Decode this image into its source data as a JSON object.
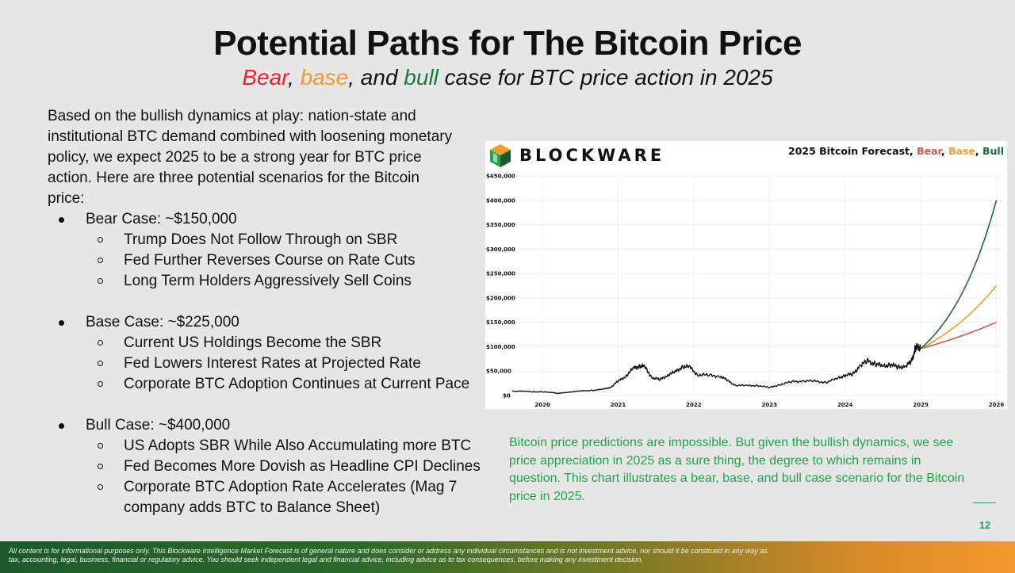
{
  "slide": {
    "title": "Potential Paths for The Bitcoin Price",
    "subtitle": {
      "bear": "Bear",
      "sep1": ", ",
      "base": "base",
      "sep2": ", and ",
      "bull": "bull",
      "rest": " case for BTC price action in 2025"
    },
    "intro": "Based on the bullish dynamics at play: nation-state and institutional BTC demand combined with loosening monetary policy, we expect 2025 to be a strong year for BTC price action. Here are three potential scenarios for the Bitcoin price:",
    "cases": [
      {
        "label": "Bear Case: ~$150,000",
        "points": [
          "Trump Does Not Follow Through on SBR",
          "Fed Further Reverses Course on Rate Cuts",
          "Long Term Holders Aggressively Sell Coins"
        ]
      },
      {
        "label": "Base Case: ~$225,000",
        "points": [
          "Current US Holdings Become the SBR",
          "Fed Lowers Interest Rates at Projected Rate",
          "Corporate BTC Adoption Continues at Current Pace"
        ]
      },
      {
        "label": "Bull Case: ~$400,000",
        "points": [
          "US Adopts SBR While Also Accumulating more BTC",
          "Fed Becomes More Dovish as Headline CPI Declines",
          "Corporate BTC Adoption Rate Accelerates (Mag 7 company adds BTC to Balance Sheet)"
        ]
      }
    ],
    "note": "Bitcoin price predictions are impossible. But given the bullish dynamics, we see price appreciation in 2025 as a sure thing, the degree to which remains in question. This chart illustrates a bear, base, and bull case scenario for the Bitcoin price in 2025.",
    "page_number": "12",
    "disclaimer": "All content is for informational purposes only. This Blockware Intelligence Market Forecast is of general nature and does consider or address any individual circumstances and is not investment advice, nor should it be construed in any way as tax, accounting, legal, business, financial or regulatory advice. You should seek independent legal and financial advice, including advice as to tax consequences, before making any investment decision.",
    "colors": {
      "bear": "#e8222b",
      "base": "#f39a2e",
      "bull": "#1e7a3c",
      "note_green": "#23a349"
    }
  },
  "chart": {
    "brand": "BLOCKWARE",
    "logo_icon": "blockware-cube-icon",
    "title_prefix": "2025 Bitcoin Forecast, ",
    "title_bear": "Bear",
    "title_sep1": ", ",
    "title_base": "Base",
    "title_sep2": ", ",
    "title_bull": "Bull"
  },
  "chart_data": {
    "type": "line",
    "title": "2025 Bitcoin Forecast, Bear, Base, Bull",
    "xlabel": "",
    "ylabel": "",
    "xlim": [
      2019.6,
      2026.1
    ],
    "ylim": [
      0,
      450000
    ],
    "x_ticks": [
      "2020",
      "2021",
      "2022",
      "2023",
      "2024",
      "2025",
      "2026"
    ],
    "y_ticks": [
      "$0",
      "$50,000",
      "$100,000",
      "$150,000",
      "$200,000",
      "$250,000",
      "$300,000",
      "$350,000",
      "$400,000",
      "$450,000"
    ],
    "grid": true,
    "series": [
      {
        "name": "",
        "color": "#111111",
        "x": [
          2019.6,
          2019.75,
          2019.9,
          2020.0,
          2020.15,
          2020.2,
          2020.35,
          2020.5,
          2020.65,
          2020.8,
          2020.9,
          2021.0,
          2021.1,
          2021.2,
          2021.28,
          2021.35,
          2021.45,
          2021.55,
          2021.65,
          2021.75,
          2021.85,
          2021.95,
          2022.05,
          2022.2,
          2022.35,
          2022.45,
          2022.55,
          2022.7,
          2022.85,
          2023.0,
          2023.15,
          2023.3,
          2023.45,
          2023.6,
          2023.75,
          2023.9,
          2024.0,
          2024.1,
          2024.2,
          2024.3,
          2024.4,
          2024.5,
          2024.6,
          2024.7,
          2024.8,
          2024.88,
          2024.93,
          2024.96,
          2025.0
        ],
        "y": [
          9000,
          8500,
          7500,
          7200,
          6000,
          4000,
          7000,
          9000,
          10500,
          12500,
          17000,
          29000,
          40000,
          55000,
          61000,
          58000,
          37000,
          32000,
          42000,
          47000,
          60000,
          57000,
          43000,
          41000,
          40000,
          30000,
          21000,
          20000,
          20500,
          16000,
          23000,
          28000,
          30000,
          29000,
          27000,
          35000,
          42000,
          43000,
          62000,
          70000,
          65000,
          60000,
          64000,
          58000,
          60000,
          70000,
          97000,
          100000,
          96000
        ]
      },
      {
        "name": "Bear",
        "color": "#d9534f",
        "x": [
          2025.0,
          2025.25,
          2025.5,
          2025.75,
          2026.0
        ],
        "y": [
          96000,
          108000,
          121000,
          135000,
          150000
        ]
      },
      {
        "name": "Base",
        "color": "#f0a030",
        "x": [
          2025.0,
          2025.25,
          2025.5,
          2025.75,
          2026.0
        ],
        "y": [
          96000,
          118000,
          145000,
          182000,
          225000
        ]
      },
      {
        "name": "Bull",
        "color": "#1e6b3c",
        "x": [
          2025.0,
          2025.25,
          2025.5,
          2025.75,
          2026.0
        ],
        "y": [
          96000,
          135000,
          190000,
          275000,
          400000
        ]
      }
    ]
  }
}
